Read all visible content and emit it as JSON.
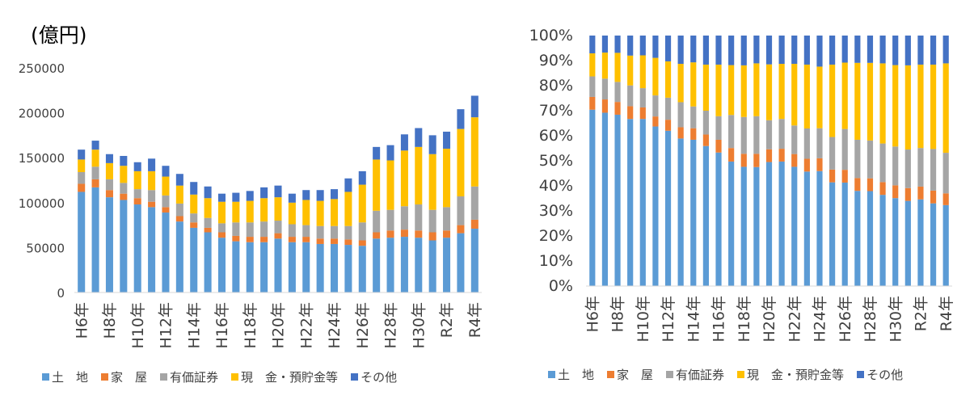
{
  "left_chart": {
    "unit_label": "(億円)"
  },
  "legend": [
    {
      "label": "土　地",
      "color": "#5B9BD5"
    },
    {
      "label": "家　屋",
      "color": "#ED7D31"
    },
    {
      "label": "有価証券",
      "color": "#A5A5A5"
    },
    {
      "label": "現　金・預貯金等",
      "color": "#FFC000"
    },
    {
      "label": "その他",
      "color": "#4472C4"
    }
  ],
  "chart_data": [
    {
      "type": "bar",
      "stacked": true,
      "categories": [
        "H6年",
        "H7年",
        "H8年",
        "H9年",
        "H10年",
        "H11年",
        "H12年",
        "H13年",
        "H14年",
        "H15年",
        "H16年",
        "H17年",
        "H18年",
        "H19年",
        "H20年",
        "H21年",
        "H22年",
        "H23年",
        "H24年",
        "H25年",
        "H26年",
        "H27年",
        "H28年",
        "H29年",
        "H30年",
        "R1年",
        "R2年",
        "R3年",
        "R4年"
      ],
      "tick_labels": [
        "H6年",
        "H8年",
        "H10年",
        "H12年",
        "H14年",
        "H16年",
        "H18年",
        "H20年",
        "H22年",
        "H24年",
        "H26年",
        "H28年",
        "H30年",
        "R2年",
        "R4年"
      ],
      "ylim": [
        0,
        250000
      ],
      "yticks": [
        "0",
        "50000",
        "100000",
        "150000",
        "200000",
        "250000"
      ],
      "series": [
        {
          "name": "土　地",
          "values": [
            112000,
            117000,
            106000,
            103000,
            98000,
            95000,
            89000,
            79000,
            72000,
            67000,
            61000,
            57000,
            56000,
            56000,
            60000,
            56000,
            56000,
            54000,
            54000,
            53000,
            52000,
            60000,
            61000,
            62000,
            61000,
            58000,
            61000,
            66000,
            71000
          ]
        },
        {
          "name": "家　屋",
          "values": [
            9000,
            9000,
            8000,
            7000,
            7000,
            6000,
            6000,
            6000,
            6000,
            5000,
            6000,
            6000,
            6000,
            6000,
            6000,
            6000,
            6000,
            6000,
            6000,
            6000,
            6000,
            7000,
            8000,
            8000,
            8000,
            9000,
            8000,
            9000,
            10000
          ]
        },
        {
          "name": "有価証券",
          "values": [
            13000,
            14000,
            12000,
            12000,
            10000,
            13000,
            13000,
            14000,
            10000,
            11000,
            10000,
            15000,
            16000,
            17000,
            14000,
            14000,
            13000,
            14000,
            14000,
            15000,
            20000,
            24000,
            23000,
            26000,
            29000,
            25000,
            26000,
            32000,
            37000
          ]
        },
        {
          "name": "現　金・預貯金等",
          "values": [
            14000,
            19000,
            18000,
            19000,
            20000,
            21000,
            21000,
            20000,
            21000,
            22000,
            24000,
            23000,
            24000,
            26000,
            26000,
            24000,
            28000,
            28000,
            30000,
            38000,
            42000,
            57000,
            55000,
            62000,
            64000,
            62000,
            65000,
            75000,
            77000
          ]
        },
        {
          "name": "その他",
          "values": [
            11000,
            10000,
            10000,
            11000,
            10000,
            14000,
            12000,
            13000,
            14000,
            13000,
            9000,
            10000,
            11000,
            12000,
            13000,
            10000,
            11000,
            12000,
            11000,
            15000,
            15000,
            14000,
            17000,
            18000,
            21000,
            21000,
            19000,
            22000,
            24000
          ]
        }
      ]
    },
    {
      "type": "bar",
      "stacked": true,
      "percent": true,
      "categories": [
        "H6年",
        "H7年",
        "H8年",
        "H9年",
        "H10年",
        "H11年",
        "H12年",
        "H13年",
        "H14年",
        "H15年",
        "H16年",
        "H17年",
        "H18年",
        "H19年",
        "H20年",
        "H21年",
        "H22年",
        "H23年",
        "H24年",
        "H25年",
        "H26年",
        "H27年",
        "H28年",
        "H29年",
        "H30年",
        "R1年",
        "R2年",
        "R3年",
        "R4年"
      ],
      "tick_labels": [
        "H6年",
        "H8年",
        "H10年",
        "H12年",
        "H14年",
        "H16年",
        "H18年",
        "H20年",
        "H22年",
        "H24年",
        "H26年",
        "H28年",
        "H30年",
        "R2年",
        "R4年"
      ],
      "ylim": [
        0,
        100
      ],
      "yticks": [
        "0%",
        "10%",
        "20%",
        "30%",
        "40%",
        "50%",
        "60%",
        "70%",
        "80%",
        "90%",
        "100%"
      ],
      "series": [
        {
          "name": "土　地",
          "values": [
            70.4,
            69.2,
            68.4,
            66.7,
            66.7,
            63.7,
            62.0,
            58.9,
            58.4,
            55.9,
            53.3,
            49.7,
            47.6,
            47.5,
            49.5,
            49.7,
            47.6,
            45.7,
            45.9,
            41.4,
            41.3,
            38.0,
            37.9,
            36.4,
            35.1,
            34.0,
            34.6,
            33.0,
            32.3
          ]
        },
        {
          "name": "家　屋",
          "values": [
            5.1,
            5.3,
            5.1,
            5.1,
            4.6,
            4.0,
            4.4,
            4.5,
            4.6,
            4.6,
            5.1,
            5.4,
            5.2,
            5.3,
            5.1,
            5.1,
            5.1,
            5.1,
            5.1,
            5.1,
            5.1,
            5.1,
            5.1,
            5.1,
            5.1,
            5.1,
            5.1,
            5.1,
            4.7
          ]
        },
        {
          "name": "有価証券",
          "values": [
            8.2,
            8.3,
            8.0,
            8.3,
            7.7,
            8.4,
            8.8,
            10.0,
            8.7,
            9.5,
            9.4,
            13.2,
            14.7,
            15.0,
            11.6,
            11.9,
            11.4,
            12.1,
            12.0,
            13.0,
            16.3,
            15.3,
            15.1,
            15.4,
            15.5,
            15.4,
            15.4,
            16.6,
            16.2
          ]
        },
        {
          "name": "現　金・預貯金等",
          "values": [
            9.2,
            10.4,
            11.6,
            11.9,
            13.1,
            15.0,
            14.5,
            15.3,
            17.6,
            18.4,
            20.6,
            19.9,
            20.6,
            21.1,
            22.3,
            22.0,
            24.6,
            25.5,
            24.6,
            28.9,
            26.5,
            30.7,
            31.0,
            32.0,
            32.5,
            33.6,
            33.3,
            33.7,
            35.7
          ]
        },
        {
          "name": "その他",
          "values": [
            7.1,
            6.8,
            6.9,
            8.0,
            7.9,
            8.9,
            10.3,
            11.3,
            10.7,
            11.6,
            11.6,
            11.8,
            11.9,
            11.1,
            11.5,
            11.3,
            11.3,
            11.6,
            12.4,
            11.6,
            10.8,
            10.9,
            10.9,
            11.1,
            11.8,
            11.9,
            11.6,
            11.6,
            11.1
          ]
        }
      ]
    }
  ]
}
